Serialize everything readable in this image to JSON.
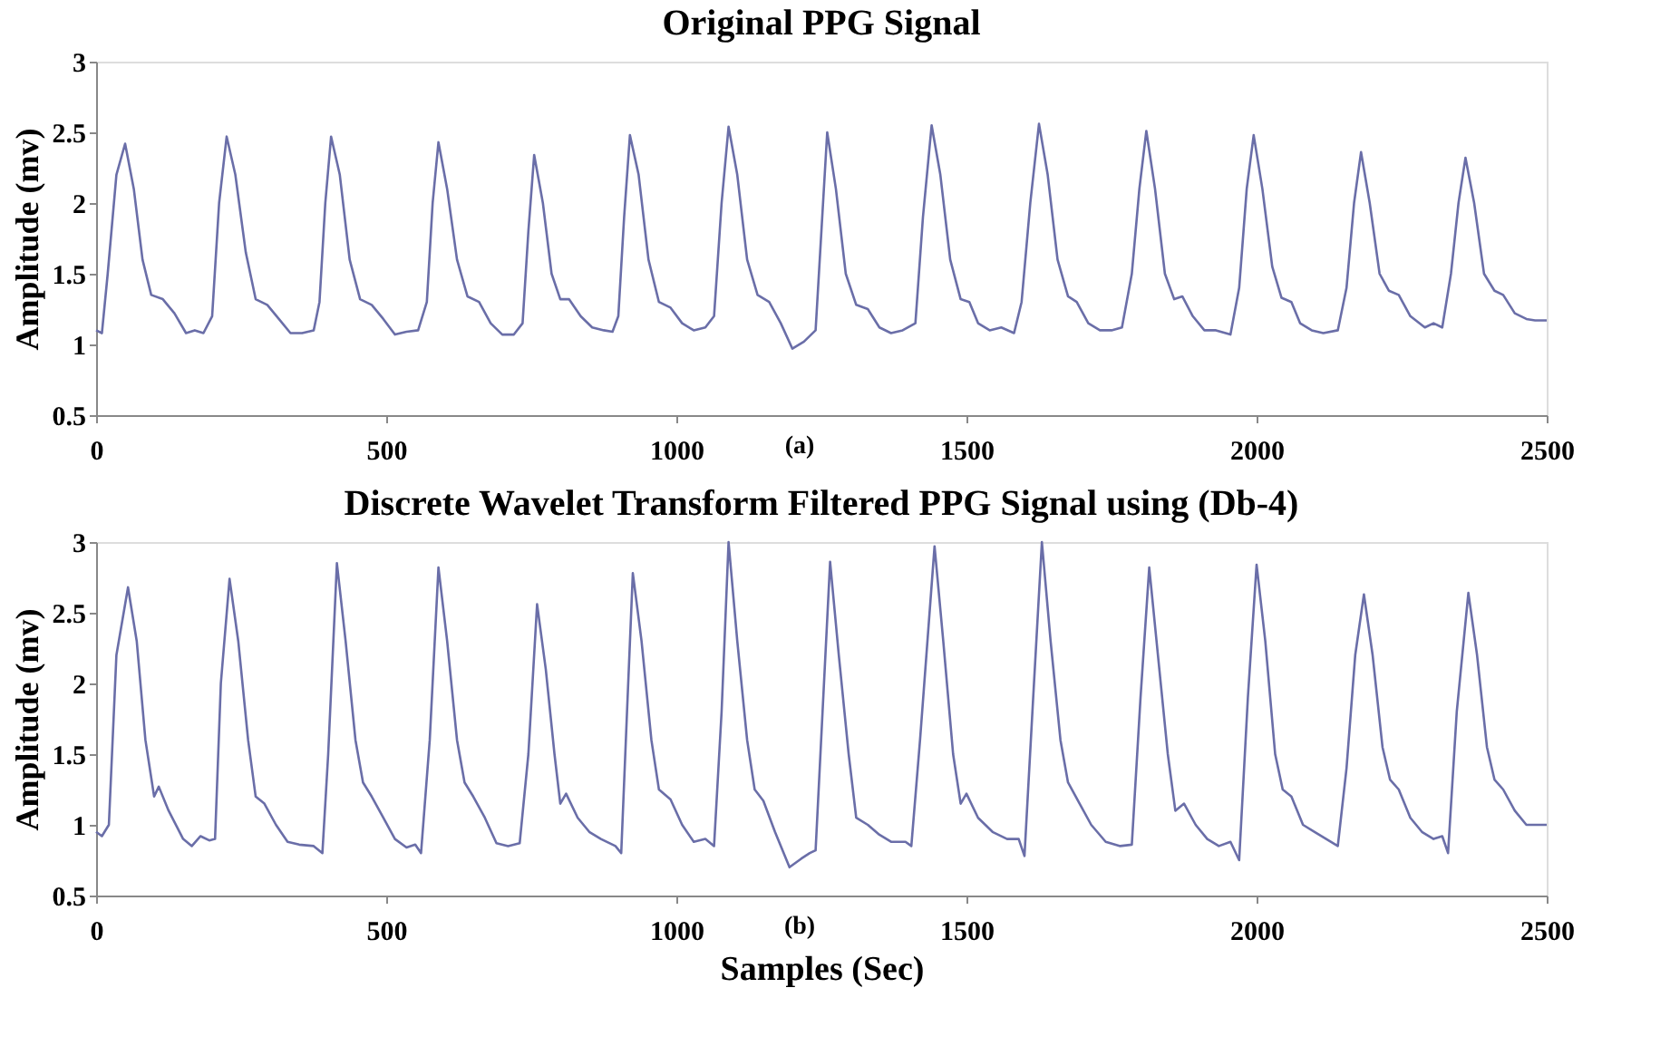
{
  "chart_data": [
    {
      "type": "line",
      "title": "Original PPG Signal",
      "ylabel": "Amplitude (mv)",
      "annotations": [
        "(a)"
      ],
      "xlim": [
        0,
        2500
      ],
      "xticks": [
        0,
        500,
        1000,
        1500,
        2000,
        2500
      ],
      "ylim": [
        0.5,
        3
      ],
      "yticks": [
        0.5,
        1,
        1.5,
        2,
        2.5,
        3
      ],
      "grid": false,
      "marker": "none",
      "line_style": "solid",
      "x": [
        0,
        10,
        20,
        35,
        50,
        65,
        80,
        95,
        115,
        135,
        155,
        170,
        185,
        200,
        212,
        225,
        240,
        258,
        275,
        295,
        315,
        335,
        355,
        375,
        385,
        395,
        405,
        420,
        437,
        455,
        475,
        495,
        515,
        535,
        555,
        570,
        580,
        590,
        605,
        622,
        640,
        660,
        680,
        700,
        720,
        735,
        745,
        755,
        770,
        785,
        800,
        815,
        835,
        855,
        875,
        890,
        900,
        910,
        920,
        935,
        952,
        970,
        990,
        1010,
        1030,
        1050,
        1065,
        1078,
        1090,
        1105,
        1122,
        1140,
        1160,
        1180,
        1200,
        1220,
        1240,
        1250,
        1260,
        1275,
        1292,
        1310,
        1330,
        1350,
        1370,
        1390,
        1412,
        1425,
        1440,
        1455,
        1472,
        1490,
        1505,
        1520,
        1540,
        1560,
        1582,
        1595,
        1610,
        1625,
        1640,
        1657,
        1675,
        1690,
        1710,
        1730,
        1750,
        1768,
        1785,
        1798,
        1810,
        1825,
        1842,
        1858,
        1872,
        1890,
        1910,
        1930,
        1955,
        1970,
        1983,
        1995,
        2010,
        2027,
        2043,
        2060,
        2075,
        2095,
        2115,
        2140,
        2155,
        2168,
        2180,
        2195,
        2212,
        2228,
        2245,
        2265,
        2290,
        2305,
        2320,
        2335,
        2348,
        2360,
        2375,
        2392,
        2410,
        2425,
        2445,
        2465,
        2480,
        2500
      ],
      "series": [
        {
          "color": "#6a6ea8",
          "values": [
            1.1,
            1.08,
            1.5,
            2.2,
            2.42,
            2.1,
            1.6,
            1.35,
            1.32,
            1.22,
            1.08,
            1.1,
            1.08,
            1.2,
            2.0,
            2.47,
            2.2,
            1.65,
            1.32,
            1.28,
            1.18,
            1.08,
            1.08,
            1.1,
            1.3,
            2.0,
            2.47,
            2.2,
            1.6,
            1.32,
            1.28,
            1.18,
            1.07,
            1.09,
            1.1,
            1.3,
            2.0,
            2.43,
            2.1,
            1.6,
            1.34,
            1.3,
            1.15,
            1.07,
            1.07,
            1.15,
            1.8,
            2.34,
            2.0,
            1.5,
            1.32,
            1.32,
            1.2,
            1.12,
            1.1,
            1.09,
            1.2,
            1.9,
            2.48,
            2.2,
            1.6,
            1.3,
            1.26,
            1.15,
            1.1,
            1.12,
            1.2,
            2.0,
            2.54,
            2.2,
            1.6,
            1.35,
            1.3,
            1.15,
            0.97,
            1.02,
            1.1,
            1.8,
            2.5,
            2.1,
            1.5,
            1.28,
            1.25,
            1.12,
            1.08,
            1.1,
            1.15,
            1.9,
            2.55,
            2.2,
            1.6,
            1.32,
            1.3,
            1.15,
            1.1,
            1.12,
            1.08,
            1.3,
            2.0,
            2.56,
            2.2,
            1.6,
            1.34,
            1.3,
            1.15,
            1.1,
            1.1,
            1.12,
            1.5,
            2.1,
            2.51,
            2.1,
            1.5,
            1.32,
            1.34,
            1.2,
            1.1,
            1.1,
            1.07,
            1.4,
            2.1,
            2.48,
            2.1,
            1.55,
            1.33,
            1.3,
            1.15,
            1.1,
            1.08,
            1.1,
            1.4,
            2.0,
            2.36,
            2.0,
            1.5,
            1.38,
            1.35,
            1.2,
            1.12,
            1.15,
            1.12,
            1.5,
            2.0,
            2.32,
            2.0,
            1.5,
            1.38,
            1.35,
            1.22,
            1.18,
            1.17,
            1.17
          ]
        }
      ]
    },
    {
      "type": "line",
      "title": "Discrete Wavelet Transform Filtered PPG Signal using (Db-4)",
      "xlabel": "Samples (Sec)",
      "ylabel": "Amplitude (mv)",
      "annotations": [
        "(b)"
      ],
      "xlim": [
        0,
        2500
      ],
      "xticks": [
        0,
        500,
        1000,
        1500,
        2000,
        2500
      ],
      "ylim": [
        0.5,
        3
      ],
      "yticks": [
        0.5,
        1,
        1.5,
        2,
        2.5,
        3
      ],
      "grid": false,
      "marker": "none",
      "line_style": "solid",
      "x": [
        0,
        10,
        22,
        35,
        55,
        70,
        85,
        100,
        108,
        125,
        150,
        165,
        180,
        195,
        205,
        215,
        230,
        245,
        262,
        275,
        290,
        310,
        330,
        350,
        375,
        390,
        400,
        415,
        430,
        447,
        460,
        475,
        495,
        515,
        535,
        550,
        560,
        575,
        590,
        605,
        622,
        635,
        650,
        670,
        690,
        710,
        730,
        745,
        760,
        775,
        790,
        800,
        810,
        830,
        850,
        870,
        895,
        905,
        915,
        925,
        940,
        957,
        970,
        990,
        1010,
        1030,
        1050,
        1065,
        1078,
        1090,
        1105,
        1122,
        1135,
        1150,
        1170,
        1195,
        1215,
        1230,
        1240,
        1252,
        1265,
        1280,
        1297,
        1310,
        1330,
        1350,
        1370,
        1395,
        1405,
        1420,
        1445,
        1460,
        1477,
        1490,
        1500,
        1520,
        1545,
        1570,
        1590,
        1600,
        1615,
        1630,
        1645,
        1662,
        1675,
        1695,
        1715,
        1740,
        1765,
        1785,
        1800,
        1815,
        1830,
        1847,
        1860,
        1875,
        1895,
        1915,
        1935,
        1955,
        1970,
        1985,
        2000,
        2015,
        2032,
        2045,
        2060,
        2080,
        2100,
        2120,
        2140,
        2155,
        2170,
        2185,
        2200,
        2217,
        2230,
        2245,
        2265,
        2285,
        2305,
        2320,
        2330,
        2345,
        2365,
        2380,
        2397,
        2410,
        2425,
        2445,
        2465,
        2480,
        2500
      ],
      "series": [
        {
          "color": "#6a6ea8",
          "values": [
            0.95,
            0.92,
            1.0,
            2.2,
            2.68,
            2.3,
            1.6,
            1.2,
            1.27,
            1.1,
            0.9,
            0.85,
            0.92,
            0.89,
            0.9,
            2.0,
            2.74,
            2.3,
            1.6,
            1.2,
            1.15,
            1.0,
            0.88,
            0.86,
            0.85,
            0.8,
            1.5,
            2.85,
            2.3,
            1.6,
            1.3,
            1.2,
            1.05,
            0.9,
            0.84,
            0.86,
            0.8,
            1.6,
            2.82,
            2.3,
            1.6,
            1.3,
            1.2,
            1.05,
            0.87,
            0.85,
            0.87,
            1.5,
            2.56,
            2.1,
            1.5,
            1.15,
            1.22,
            1.05,
            0.95,
            0.9,
            0.85,
            0.8,
            1.8,
            2.78,
            2.3,
            1.6,
            1.25,
            1.18,
            1.0,
            0.88,
            0.9,
            0.85,
            1.8,
            3.0,
            2.3,
            1.6,
            1.25,
            1.17,
            0.95,
            0.7,
            0.76,
            0.8,
            0.82,
            1.8,
            2.86,
            2.2,
            1.5,
            1.05,
            1.0,
            0.93,
            0.88,
            0.88,
            0.85,
            1.6,
            2.97,
            2.3,
            1.5,
            1.15,
            1.22,
            1.05,
            0.95,
            0.9,
            0.9,
            0.78,
            1.9,
            3.0,
            2.3,
            1.6,
            1.3,
            1.15,
            1.0,
            0.88,
            0.85,
            0.86,
            1.9,
            2.82,
            2.2,
            1.5,
            1.1,
            1.15,
            1.0,
            0.9,
            0.85,
            0.88,
            0.75,
            1.9,
            2.84,
            2.3,
            1.5,
            1.25,
            1.2,
            1.0,
            0.95,
            0.9,
            0.85,
            1.4,
            2.2,
            2.63,
            2.2,
            1.55,
            1.32,
            1.25,
            1.05,
            0.95,
            0.9,
            0.92,
            0.8,
            1.8,
            2.64,
            2.2,
            1.55,
            1.32,
            1.25,
            1.1,
            1.0,
            1.0,
            1.0
          ]
        }
      ]
    }
  ]
}
